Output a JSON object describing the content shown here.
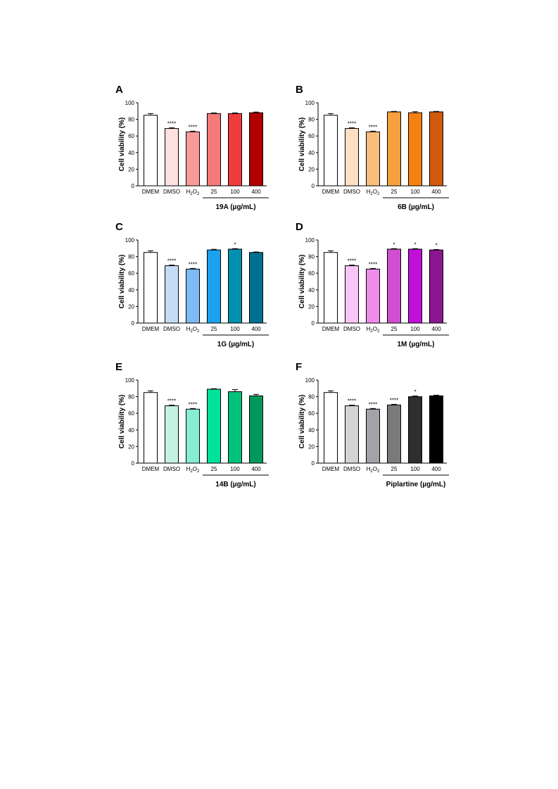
{
  "chart_data": [
    {
      "panel": "A",
      "type": "bar",
      "ylabel": "Cell viability (%)",
      "ylim": [
        0,
        100
      ],
      "yticks": [
        0,
        20,
        40,
        60,
        80,
        100
      ],
      "categories": [
        "DMEM",
        "DMSO",
        "H2O2",
        "25",
        "100",
        "400"
      ],
      "values": [
        85,
        69,
        65,
        87,
        87,
        88
      ],
      "errors": [
        2,
        0.8,
        0.8,
        0.8,
        0.8,
        0.8
      ],
      "significance": [
        "",
        "****",
        "****",
        "",
        "",
        ""
      ],
      "colors": [
        "#ffffff",
        "#fde0e0",
        "#f89a9a",
        "#f47a7a",
        "#ef3b3b",
        "#b00000"
      ],
      "group_label": "19A (µg/mL)"
    },
    {
      "panel": "B",
      "type": "bar",
      "ylabel": "Cell viability (%)",
      "ylim": [
        0,
        100
      ],
      "yticks": [
        0,
        20,
        40,
        60,
        80,
        100
      ],
      "categories": [
        "DMEM",
        "DMSO",
        "H2O2",
        "25",
        "100",
        "400"
      ],
      "values": [
        85,
        69,
        65,
        89,
        88,
        89
      ],
      "errors": [
        2,
        0.8,
        0.8,
        0.6,
        1.2,
        0.6
      ],
      "significance": [
        "",
        "****",
        "****",
        "",
        "",
        ""
      ],
      "colors": [
        "#ffffff",
        "#fde0c4",
        "#f9bd7c",
        "#f6a040",
        "#f58113",
        "#d05a0b"
      ],
      "group_label": "6B (µg/mL)"
    },
    {
      "panel": "C",
      "type": "bar",
      "ylabel": "Cell viability (%)",
      "ylim": [
        0,
        100
      ],
      "yticks": [
        0,
        20,
        40,
        60,
        80,
        100
      ],
      "categories": [
        "DMEM",
        "DMSO",
        "H2O2",
        "25",
        "100",
        "400"
      ],
      "values": [
        85,
        69,
        65,
        88,
        89,
        85
      ],
      "errors": [
        2,
        0.8,
        0.8,
        0.8,
        0.6,
        0.6
      ],
      "significance": [
        "",
        "****",
        "****",
        "",
        "*",
        ""
      ],
      "colors": [
        "#ffffff",
        "#c5dcf6",
        "#7ebaf3",
        "#1ba1ee",
        "#0090b0",
        "#007090"
      ],
      "group_label": "1G (µg/mL)"
    },
    {
      "panel": "D",
      "type": "bar",
      "ylabel": "Cell viability (%)",
      "ylim": [
        0,
        100
      ],
      "yticks": [
        0,
        20,
        40,
        60,
        80,
        100
      ],
      "categories": [
        "DMEM",
        "DMSO",
        "H2O2",
        "25",
        "100",
        "400"
      ],
      "values": [
        85,
        69,
        65,
        89,
        89,
        88
      ],
      "errors": [
        2,
        0.8,
        0.8,
        0.6,
        0.6,
        0.6
      ],
      "significance": [
        "",
        "****",
        "****",
        "*",
        "*",
        "*"
      ],
      "colors": [
        "#ffffff",
        "#f8c6f4",
        "#ee8ce9",
        "#cf4fd0",
        "#c010d8",
        "#8a1690"
      ],
      "group_label": "1M (µg/mL)"
    },
    {
      "panel": "E",
      "type": "bar",
      "ylabel": "Cell viability (%)",
      "ylim": [
        0,
        100
      ],
      "yticks": [
        0,
        20,
        40,
        60,
        80,
        100
      ],
      "categories": [
        "DMEM",
        "DMSO",
        "H2O2",
        "25",
        "100",
        "400"
      ],
      "values": [
        85,
        69,
        65,
        89,
        86,
        81
      ],
      "errors": [
        2,
        0.8,
        0.8,
        0.6,
        2.5,
        1.8
      ],
      "significance": [
        "",
        "****",
        "****",
        "",
        "",
        ""
      ],
      "colors": [
        "#ffffff",
        "#c3f2e4",
        "#86ecd2",
        "#00e29a",
        "#00c27a",
        "#00985a"
      ],
      "group_label": "14B (µg/mL)"
    },
    {
      "panel": "F",
      "type": "bar",
      "ylabel": "Cell viability (%)",
      "ylim": [
        0,
        100
      ],
      "yticks": [
        0,
        20,
        40,
        60,
        80,
        100
      ],
      "categories": [
        "DMEM",
        "DMSO",
        "H2O2",
        "25",
        "100",
        "400"
      ],
      "values": [
        85,
        69,
        65,
        70,
        80,
        81
      ],
      "errors": [
        2,
        0.8,
        0.8,
        0.8,
        0.8,
        0.8
      ],
      "significance": [
        "",
        "****",
        "****",
        "****",
        "*",
        ""
      ],
      "colors": [
        "#ffffff",
        "#d4d4d4",
        "#a2a2a8",
        "#7a7a7a",
        "#2e2e2e",
        "#000000"
      ],
      "group_label": "Piplartine (µg/mL)"
    }
  ]
}
